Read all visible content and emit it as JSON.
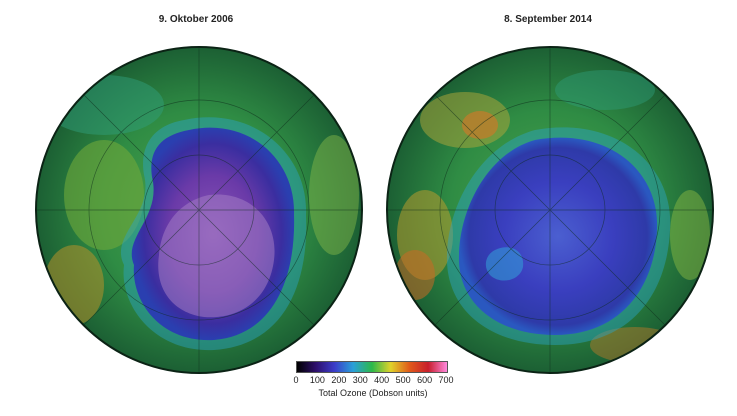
{
  "panels": [
    {
      "date_label": "9. Oktober 2006"
    },
    {
      "date_label": "8. September 2014"
    }
  ],
  "legend": {
    "ticks": [
      "0",
      "100",
      "200",
      "300",
      "400",
      "500",
      "600",
      "700"
    ],
    "label": "Total Ozone (Dobson units)",
    "colors": [
      "#000000",
      "#2e0f6b",
      "#3b3cc9",
      "#2aa0d8",
      "#2cb84a",
      "#e0d22a",
      "#e05a1a",
      "#c81e2c",
      "#ff88dd"
    ]
  }
}
